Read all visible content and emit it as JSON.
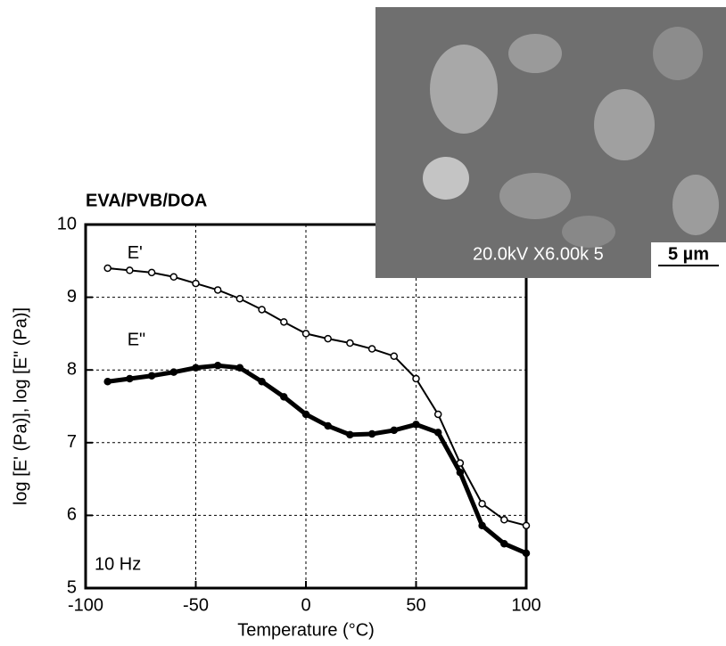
{
  "chart_data": {
    "type": "scatter",
    "title": "EVA/PVB/DOA",
    "x_label": "Temperature (°C)",
    "y_label": "log [E' (Pa)], log [E\" (Pa)]",
    "annotation": "10 Hz",
    "x": [
      -90,
      -80,
      -70,
      -60,
      -50,
      -40,
      -30,
      -20,
      -10,
      0,
      10,
      20,
      30,
      40,
      50,
      60,
      70,
      80,
      90,
      100
    ],
    "series": [
      {
        "name": "E'",
        "color": "#000000",
        "marker": "open",
        "values": [
          9.4,
          9.37,
          9.34,
          9.28,
          9.19,
          9.1,
          8.98,
          8.83,
          8.66,
          8.5,
          8.43,
          8.37,
          8.29,
          8.19,
          7.88,
          7.39,
          6.72,
          6.16,
          5.94,
          5.86
        ]
      },
      {
        "name": "E\"",
        "color": "#000000",
        "marker": "filled",
        "values": [
          7.84,
          7.88,
          7.92,
          7.97,
          8.03,
          8.06,
          8.03,
          7.84,
          7.63,
          7.39,
          7.23,
          7.11,
          7.12,
          7.17,
          7.25,
          7.14,
          6.59,
          5.86,
          5.61,
          5.48
        ]
      }
    ],
    "xlim": [
      -100,
      100
    ],
    "xticks": [
      -100,
      -50,
      0,
      50,
      100
    ],
    "ylim": [
      5,
      10
    ],
    "yticks": [
      5,
      6,
      7,
      8,
      9,
      10
    ],
    "grid": true
  },
  "inset": {
    "label": "20.0kV X6.00k 5",
    "scale_bar": "5 µm"
  }
}
